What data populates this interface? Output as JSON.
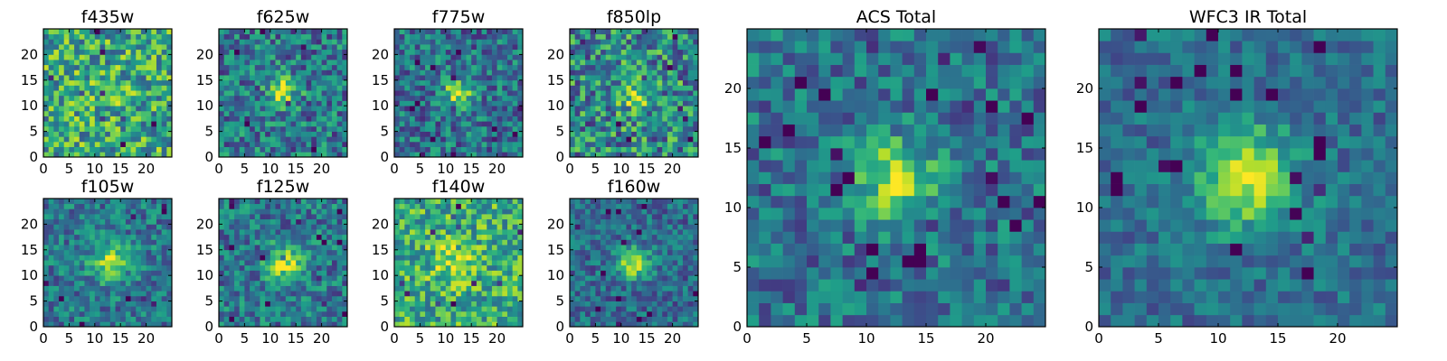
{
  "chart_data": {
    "type": "heatmap",
    "colormap": "viridis",
    "grid": false,
    "panels": [
      {
        "id": "f435w",
        "title": "f435w",
        "type": "heatmap",
        "xlim": [
          0,
          25
        ],
        "ylim": [
          0,
          25
        ],
        "xticks": [
          0,
          5,
          10,
          15,
          20
        ],
        "yticks": [
          0,
          5,
          10,
          15,
          20
        ],
        "peak": {
          "x": 12,
          "y": 12
        },
        "peak_strength": 0.06,
        "background": 0.6,
        "noise": 0.32,
        "sigma": 3
      },
      {
        "id": "f625w",
        "title": "f625w",
        "type": "heatmap",
        "xlim": [
          0,
          25
        ],
        "ylim": [
          0,
          25
        ],
        "xticks": [
          0,
          5,
          10,
          15,
          20
        ],
        "yticks": [
          0,
          5,
          10,
          15,
          20
        ],
        "peak": {
          "x": 12,
          "y": 12
        },
        "peak_strength": 0.55,
        "background": 0.4,
        "noise": 0.28,
        "sigma": 2
      },
      {
        "id": "f775w",
        "title": "f775w",
        "type": "heatmap",
        "xlim": [
          0,
          25
        ],
        "ylim": [
          0,
          25
        ],
        "xticks": [
          0,
          5,
          10,
          15,
          20
        ],
        "yticks": [
          0,
          5,
          10,
          15,
          20
        ],
        "peak": {
          "x": 12,
          "y": 12
        },
        "peak_strength": 0.55,
        "background": 0.38,
        "noise": 0.26,
        "sigma": 2
      },
      {
        "id": "f850lp",
        "title": "f850lp",
        "type": "heatmap",
        "xlim": [
          0,
          25
        ],
        "ylim": [
          0,
          25
        ],
        "xticks": [
          0,
          5,
          10,
          15,
          20
        ],
        "yticks": [
          0,
          5,
          10,
          15,
          20
        ],
        "peak": {
          "x": 12,
          "y": 11.5
        },
        "peak_strength": 0.35,
        "background": 0.48,
        "noise": 0.34,
        "sigma": 2
      },
      {
        "id": "f105w",
        "title": "f105w",
        "type": "heatmap",
        "xlim": [
          0,
          25
        ],
        "ylim": [
          0,
          25
        ],
        "xticks": [
          0,
          5,
          10,
          15,
          20
        ],
        "yticks": [
          0,
          5,
          10,
          15,
          20
        ],
        "peak": {
          "x": 12.5,
          "y": 12
        },
        "peak_strength": 0.45,
        "background": 0.4,
        "noise": 0.22,
        "sigma": 2.5
      },
      {
        "id": "f125w",
        "title": "f125w",
        "type": "heatmap",
        "xlim": [
          0,
          25
        ],
        "ylim": [
          0,
          25
        ],
        "xticks": [
          0,
          5,
          10,
          15,
          20
        ],
        "yticks": [
          0,
          5,
          10,
          15,
          20
        ],
        "peak": {
          "x": 12.5,
          "y": 11.5
        },
        "peak_strength": 0.5,
        "background": 0.4,
        "noise": 0.24,
        "sigma": 2.5
      },
      {
        "id": "f140w",
        "title": "f140w",
        "type": "heatmap",
        "xlim": [
          0,
          25
        ],
        "ylim": [
          0,
          25
        ],
        "xticks": [
          0,
          5,
          10,
          15,
          20
        ],
        "yticks": [
          0,
          5,
          10,
          15,
          20
        ],
        "peak": {
          "x": 11,
          "y": 12
        },
        "peak_strength": 0.25,
        "background": 0.62,
        "noise": 0.28,
        "sigma": 3
      },
      {
        "id": "f160w",
        "title": "f160w",
        "type": "heatmap",
        "xlim": [
          0,
          25
        ],
        "ylim": [
          0,
          25
        ],
        "xticks": [
          0,
          5,
          10,
          15,
          20
        ],
        "yticks": [
          0,
          5,
          10,
          15,
          20
        ],
        "peak": {
          "x": 12,
          "y": 12
        },
        "peak_strength": 0.55,
        "background": 0.35,
        "noise": 0.2,
        "sigma": 2.2
      },
      {
        "id": "acs-total",
        "title": "ACS Total",
        "type": "heatmap",
        "xlim": [
          0,
          25
        ],
        "ylim": [
          0,
          25
        ],
        "xticks": [
          0,
          5,
          10,
          15,
          20
        ],
        "yticks": [
          0,
          5,
          10,
          15,
          20
        ],
        "peak": {
          "x": 12,
          "y": 12
        },
        "peak_strength": 0.55,
        "background": 0.38,
        "noise": 0.22,
        "sigma": 2.2
      },
      {
        "id": "wfc3-ir-total",
        "title": "WFC3 IR Total",
        "type": "heatmap",
        "xlim": [
          0,
          25
        ],
        "ylim": [
          0,
          25
        ],
        "xticks": [
          0,
          5,
          10,
          15,
          20
        ],
        "yticks": [
          0,
          5,
          10,
          15,
          20
        ],
        "peak": {
          "x": 12,
          "y": 12
        },
        "peak_strength": 0.55,
        "background": 0.36,
        "noise": 0.16,
        "sigma": 3
      }
    ]
  }
}
